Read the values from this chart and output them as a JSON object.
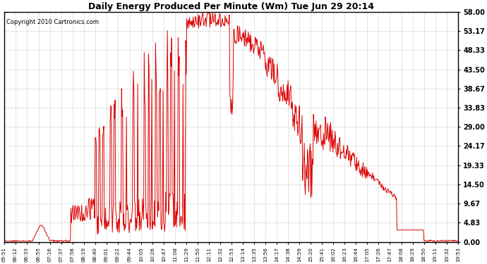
{
  "title": "Daily Energy Produced Per Minute (Wm) Tue Jun 29 20:14",
  "copyright": "Copyright 2010 Cartronics.com",
  "line_color": "#dd0000",
  "bg_color": "#ffffff",
  "plot_bg_color": "#ffffff",
  "grid_color": "#bbbbbb",
  "yticks": [
    0.0,
    4.83,
    9.67,
    14.5,
    19.33,
    24.17,
    29.0,
    33.83,
    38.67,
    43.5,
    48.33,
    53.17,
    58.0
  ],
  "ymax": 58.0,
  "ymin": 0.0,
  "tick_labels": [
    "05:51",
    "06:12",
    "06:33",
    "06:55",
    "07:16",
    "07:37",
    "07:58",
    "08:19",
    "08:40",
    "09:01",
    "09:22",
    "09:44",
    "10:05",
    "10:26",
    "10:47",
    "11:08",
    "11:29",
    "11:50",
    "12:11",
    "12:32",
    "12:53",
    "13:14",
    "13:35",
    "13:56",
    "14:17",
    "14:38",
    "14:59",
    "15:20",
    "15:41",
    "16:02",
    "16:23",
    "16:44",
    "17:05",
    "17:26",
    "17:47",
    "18:08",
    "18:29",
    "18:50",
    "19:11",
    "19:32",
    "19:53"
  ]
}
